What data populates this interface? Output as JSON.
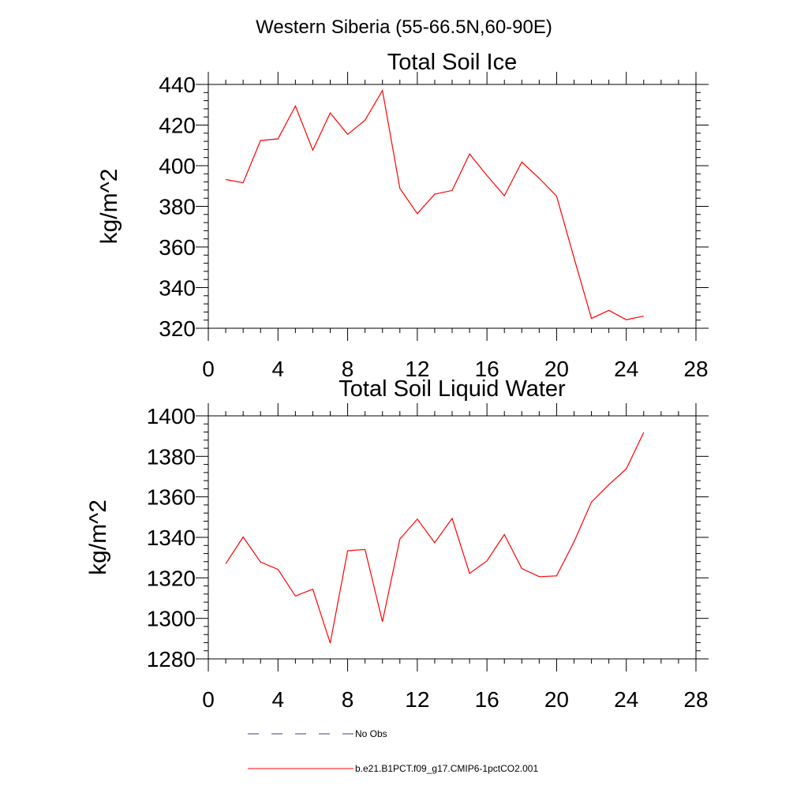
{
  "figure_title": "Western Siberia (55-66.5N,60-90E)",
  "chart_data": [
    {
      "type": "line",
      "title": "Total Soil Ice",
      "xlabel": "",
      "ylabel": "kg/m^2",
      "xlim": [
        0,
        28
      ],
      "ylim": [
        320,
        440
      ],
      "x_ticks": [
        0,
        4,
        8,
        12,
        16,
        20,
        24,
        28
      ],
      "y_ticks": [
        320,
        340,
        360,
        380,
        400,
        420,
        440
      ],
      "series": [
        {
          "name": "b.e21.B1PCT.f09_g17.CMIP6-1pctCO2.001",
          "color": "#ff0000",
          "x": [
            1,
            2,
            3,
            4,
            5,
            6,
            7,
            8,
            9,
            10,
            11,
            12,
            13,
            14,
            15,
            16,
            17,
            18,
            19,
            20,
            21,
            22,
            23,
            24,
            25
          ],
          "values": [
            393.2,
            391.6,
            412.4,
            413.2,
            429.4,
            407.6,
            426.0,
            415.4,
            422.4,
            437.0,
            388.8,
            376.4,
            386.0,
            387.8,
            405.8,
            395.2,
            385.2,
            401.8,
            393.8,
            385.0,
            354.6,
            324.8,
            328.8,
            324.2,
            326.0
          ]
        }
      ]
    },
    {
      "type": "line",
      "title": "Total Soil Liquid Water",
      "xlabel": "",
      "ylabel": "kg/m^2",
      "xlim": [
        0,
        28
      ],
      "ylim": [
        1280,
        1400
      ],
      "x_ticks": [
        0,
        4,
        8,
        12,
        16,
        20,
        24,
        28
      ],
      "y_ticks": [
        1280,
        1300,
        1320,
        1340,
        1360,
        1380,
        1400
      ],
      "series": [
        {
          "name": "b.e21.B1PCT.f09_g17.CMIP6-1pctCO2.001",
          "color": "#ff0000",
          "x": [
            1,
            2,
            3,
            4,
            5,
            6,
            7,
            8,
            9,
            10,
            11,
            12,
            13,
            14,
            15,
            16,
            17,
            18,
            19,
            20,
            21,
            22,
            23,
            24,
            25
          ],
          "values": [
            1327.0,
            1340.2,
            1327.8,
            1324.2,
            1311.0,
            1314.4,
            1287.8,
            1333.4,
            1334.0,
            1298.4,
            1339.2,
            1349.0,
            1337.4,
            1349.4,
            1322.2,
            1328.4,
            1341.4,
            1324.6,
            1320.6,
            1321.0,
            1337.8,
            1357.4,
            1366.0,
            1373.8,
            1391.8
          ]
        }
      ]
    }
  ],
  "legend": {
    "placement": "bottom",
    "items": [
      {
        "label": "No Obs",
        "color": "#3b3b8c",
        "style": "dashed"
      },
      {
        "label": "b.e21.B1PCT.f09_g17.CMIP6-1pctCO2.001",
        "color": "#ff0000",
        "style": "solid"
      }
    ]
  }
}
